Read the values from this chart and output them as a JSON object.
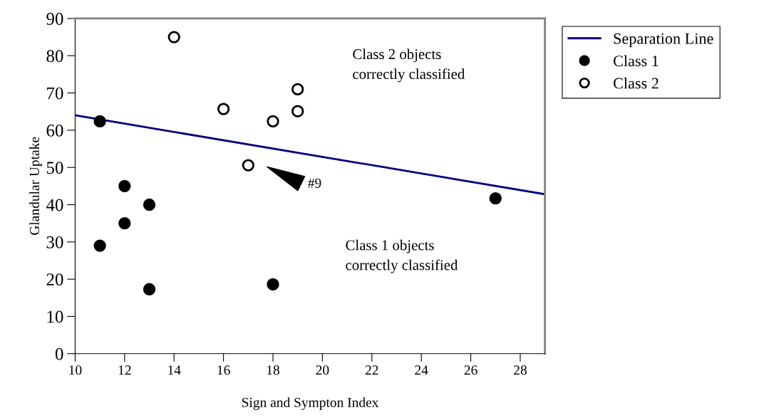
{
  "chart_data": {
    "type": "scatter",
    "xlabel": "Sign and Sympton Index",
    "ylabel": "Glandular Uptake",
    "xlim": [
      10,
      29
    ],
    "xticks": [
      10,
      12,
      14,
      16,
      18,
      20,
      22,
      24,
      26,
      28
    ],
    "ylim": [
      0,
      90
    ],
    "yticks": [
      0,
      10,
      20,
      30,
      40,
      50,
      60,
      70,
      80,
      90
    ],
    "grid": false,
    "legend": "top right",
    "series": [
      {
        "name": "Separation Line",
        "type": "line",
        "color": "#000080",
        "marker": "none",
        "line_style": "solid",
        "x": [
          10,
          29
        ],
        "values": [
          64,
          42.8
        ]
      },
      {
        "name": "Class 1",
        "color": "#000000",
        "marker": "circle",
        "x": [
          11,
          12,
          12,
          13,
          11,
          13,
          18,
          27
        ],
        "values": [
          62.4,
          45,
          35,
          40,
          29,
          17.3,
          18.6,
          41.7
        ]
      },
      {
        "name": "Class 2",
        "color": "#ffffff",
        "marker": "circle",
        "x": [
          14,
          16,
          18,
          19,
          19,
          17
        ],
        "values": [
          85,
          65.7,
          62.4,
          71,
          65.1,
          50.6
        ]
      }
    ],
    "annotations": [
      "#9",
      "Class 2 objects\ncorrectly classified",
      "Class 1 objects\ncorrectly classified"
    ]
  }
}
